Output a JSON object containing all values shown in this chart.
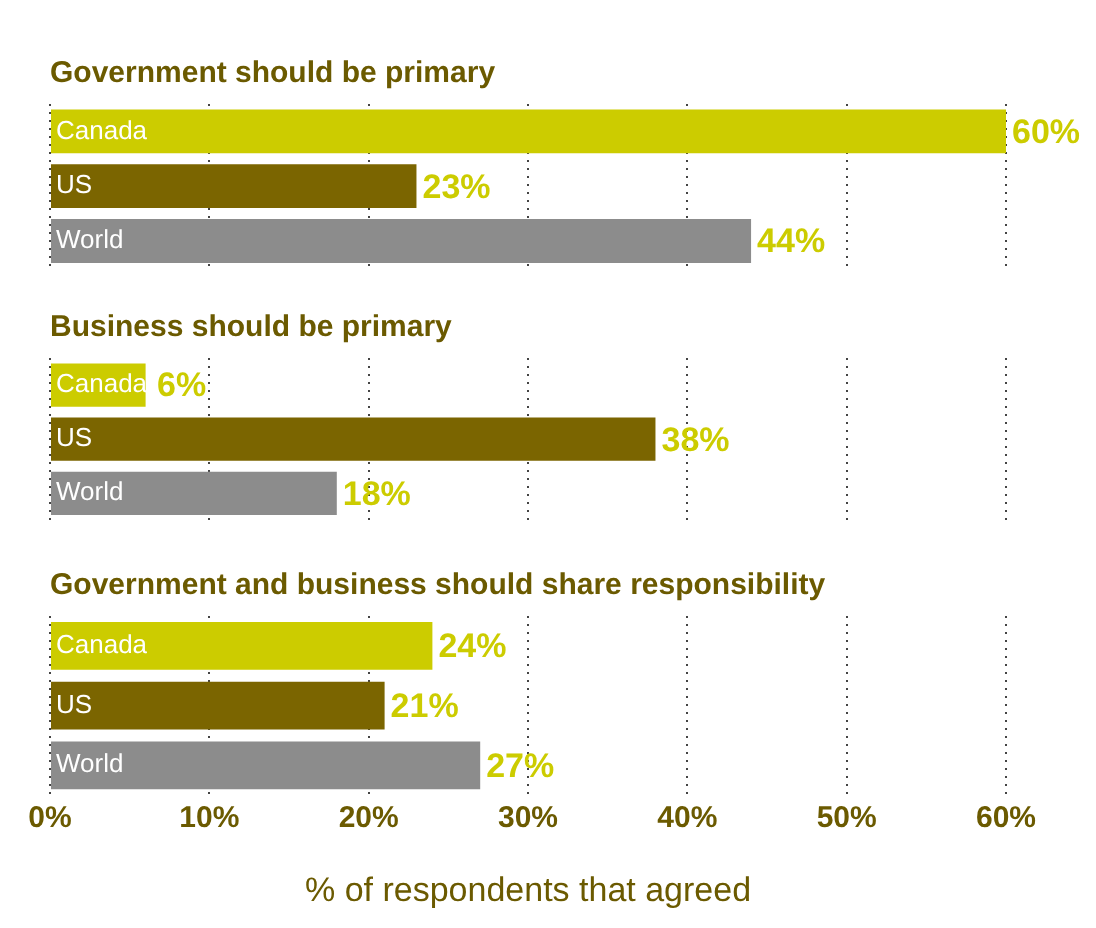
{
  "chart_data": [
    {
      "type": "bar",
      "orientation": "horizontal",
      "title": "Government should be primary",
      "categories": [
        "Canada",
        "US",
        "World"
      ],
      "values": [
        60,
        23,
        44
      ],
      "colors": [
        "#cccc00",
        "#7b6500",
        "#8c8c8c"
      ],
      "value_labels": [
        "60%",
        "23%",
        "44%"
      ],
      "xlim": [
        0,
        60
      ],
      "xticks": [
        {
          "value": 0,
          "label": null
        },
        {
          "value": 10,
          "label": null
        },
        {
          "value": 20,
          "label": null
        },
        {
          "value": 30,
          "label": null
        },
        {
          "value": 40,
          "label": null
        },
        {
          "value": 50,
          "label": null
        },
        {
          "value": 60,
          "label": null
        }
      ],
      "grid": "x",
      "tick_labels": "y"
    },
    {
      "type": "bar",
      "orientation": "horizontal",
      "title": "Business should be primary",
      "categories": [
        "Canada",
        "US",
        "World"
      ],
      "values": [
        6,
        38,
        18
      ],
      "colors": [
        "#cccc00",
        "#7b6500",
        "#8c8c8c"
      ],
      "value_labels": [
        "6%",
        "38%",
        "18%"
      ],
      "xlim": [
        0,
        60
      ],
      "xticks": [
        {
          "value": 0,
          "label": null
        },
        {
          "value": 10,
          "label": null
        },
        {
          "value": 20,
          "label": null
        },
        {
          "value": 30,
          "label": null
        },
        {
          "value": 40,
          "label": null
        },
        {
          "value": 50,
          "label": null
        },
        {
          "value": 60,
          "label": null
        }
      ],
      "grid": "x",
      "tick_labels": "y"
    },
    {
      "type": "bar",
      "orientation": "horizontal",
      "title": "Government and business should share responsibility",
      "categories": [
        "Canada",
        "US",
        "World"
      ],
      "values": [
        24,
        21,
        27
      ],
      "colors": [
        "#cccc00",
        "#7b6500",
        "#8c8c8c"
      ],
      "value_labels": [
        "24%",
        "21%",
        "27%"
      ],
      "xlabel": "% of respondents that agreed",
      "xlim": [
        0,
        60
      ],
      "xticks": [
        {
          "value": 0,
          "label": "0%"
        },
        {
          "value": 10,
          "label": "10%"
        },
        {
          "value": 20,
          "label": "20%"
        },
        {
          "value": 30,
          "label": "30%"
        },
        {
          "value": 40,
          "label": "40%"
        },
        {
          "value": 50,
          "label": "50%"
        },
        {
          "value": 60,
          "label": "60%"
        }
      ],
      "grid": "x"
    }
  ]
}
